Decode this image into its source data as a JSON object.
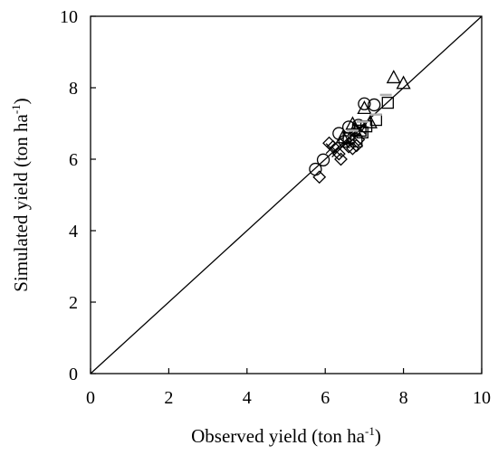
{
  "chart_data": {
    "type": "scatter",
    "xlabel": "Observed yield (ton ha-1)",
    "xlabel_parts": {
      "main": "Observed yield (ton ha",
      "sup": "-1",
      "end": ")"
    },
    "ylabel": "Simulated yield (ton ha-1)",
    "ylabel_parts": {
      "main": "Simulated yield (ton ha",
      "sup": "-1",
      "end": ")"
    },
    "xlim": [
      0,
      10
    ],
    "ylim": [
      0,
      10
    ],
    "xticks": [
      "0",
      "2",
      "4",
      "6",
      "8",
      "10"
    ],
    "yticks": [
      "0",
      "2",
      "4",
      "6",
      "8",
      "10"
    ],
    "grid": false,
    "reference_line": {
      "from": [
        0,
        0
      ],
      "to": [
        10,
        10
      ],
      "color": "#000000"
    },
    "series": [
      {
        "marker": "circle",
        "points": [
          [
            5.75,
            5.72
          ],
          [
            5.95,
            5.98
          ],
          [
            6.35,
            6.72
          ],
          [
            7.0,
            7.55
          ],
          [
            7.25,
            7.52
          ],
          [
            6.6,
            6.9
          ],
          [
            6.85,
            6.95
          ],
          [
            6.5,
            6.5
          ]
        ]
      },
      {
        "marker": "triangle",
        "points": [
          [
            7.75,
            8.28
          ],
          [
            8.0,
            8.12
          ],
          [
            7.0,
            7.42
          ],
          [
            6.75,
            6.82
          ],
          [
            7.15,
            7.02
          ],
          [
            6.7,
            6.98
          ],
          [
            6.45,
            6.6
          ]
        ]
      },
      {
        "marker": "square",
        "points": [
          [
            7.6,
            7.58
          ],
          [
            7.3,
            7.1
          ],
          [
            6.8,
            6.5
          ],
          [
            6.9,
            6.8
          ],
          [
            6.6,
            6.58
          ],
          [
            7.05,
            6.92
          ],
          [
            6.95,
            6.75
          ]
        ]
      },
      {
        "marker": "diamond",
        "points": [
          [
            5.85,
            5.5
          ],
          [
            6.1,
            6.45
          ],
          [
            6.4,
            6.0
          ],
          [
            6.35,
            6.15
          ],
          [
            6.8,
            6.38
          ],
          [
            6.7,
            6.3
          ],
          [
            6.6,
            6.35
          ],
          [
            6.2,
            6.35
          ],
          [
            6.85,
            6.55
          ]
        ]
      },
      {
        "marker": "cross",
        "points": [
          [
            6.3,
            6.2
          ],
          [
            6.5,
            6.45
          ],
          [
            6.75,
            6.6
          ],
          [
            6.9,
            6.85
          ],
          [
            6.15,
            6.3
          ]
        ]
      },
      {
        "marker": "dash",
        "color": "#b0b0b0",
        "points": [
          [
            7.55,
            7.8
          ],
          [
            7.3,
            7.25
          ],
          [
            6.95,
            7.05
          ],
          [
            6.7,
            6.8
          ]
        ]
      }
    ]
  }
}
